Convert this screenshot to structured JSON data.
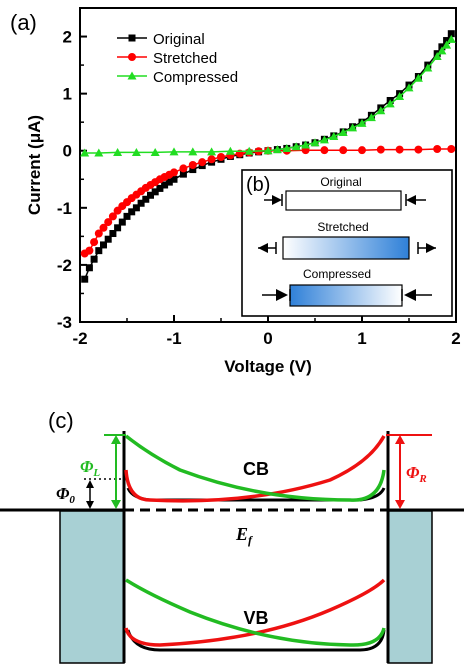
{
  "panel_a": {
    "label": "(a)",
    "chart_data": {
      "type": "line",
      "xlabel": "Voltage (V)",
      "ylabel": "Current (μA)",
      "xlim": [
        -2,
        2
      ],
      "ylim": [
        -3,
        2.5
      ],
      "x_ticks": [
        "-2",
        "-1",
        "0",
        "1",
        "2"
      ],
      "y_ticks": [
        "-3",
        "-2",
        "-1",
        "0",
        "1",
        "2"
      ],
      "legend_position": "top-center",
      "series": [
        {
          "name": "Original",
          "color": "#000000",
          "marker": "square",
          "x": [
            -1.95,
            -1.9,
            -1.85,
            -1.8,
            -1.75,
            -1.7,
            -1.65,
            -1.6,
            -1.55,
            -1.5,
            -1.45,
            -1.4,
            -1.35,
            -1.3,
            -1.25,
            -1.2,
            -1.15,
            -1.1,
            -1.05,
            -1.0,
            -0.9,
            -0.8,
            -0.7,
            -0.6,
            -0.5,
            -0.4,
            -0.3,
            -0.2,
            -0.1,
            0.0,
            0.1,
            0.2,
            0.3,
            0.4,
            0.5,
            0.6,
            0.7,
            0.8,
            0.9,
            1.0,
            1.1,
            1.2,
            1.3,
            1.4,
            1.5,
            1.6,
            1.7,
            1.8,
            1.85,
            1.9,
            1.95
          ],
          "y": [
            -2.25,
            -2.05,
            -1.9,
            -1.75,
            -1.65,
            -1.55,
            -1.45,
            -1.35,
            -1.25,
            -1.15,
            -1.07,
            -1.0,
            -0.92,
            -0.85,
            -0.78,
            -0.72,
            -0.66,
            -0.6,
            -0.55,
            -0.5,
            -0.41,
            -0.33,
            -0.26,
            -0.2,
            -0.15,
            -0.1,
            -0.07,
            -0.04,
            -0.02,
            0.0,
            0.02,
            0.04,
            0.07,
            0.1,
            0.14,
            0.2,
            0.26,
            0.33,
            0.42,
            0.5,
            0.62,
            0.75,
            0.88,
            1.0,
            1.15,
            1.3,
            1.5,
            1.7,
            1.82,
            1.93,
            2.05
          ]
        },
        {
          "name": "Stretched",
          "color": "#ff0000",
          "marker": "circle",
          "x": [
            -1.95,
            -1.9,
            -1.85,
            -1.8,
            -1.75,
            -1.7,
            -1.65,
            -1.6,
            -1.55,
            -1.5,
            -1.45,
            -1.4,
            -1.35,
            -1.3,
            -1.25,
            -1.2,
            -1.15,
            -1.1,
            -1.05,
            -1.0,
            -0.9,
            -0.8,
            -0.7,
            -0.6,
            -0.5,
            -0.4,
            -0.3,
            -0.2,
            -0.1,
            0.0,
            0.2,
            0.4,
            0.6,
            0.8,
            1.0,
            1.2,
            1.4,
            1.6,
            1.8,
            1.95
          ],
          "y": [
            -1.8,
            -1.75,
            -1.6,
            -1.45,
            -1.35,
            -1.25,
            -1.15,
            -1.05,
            -0.97,
            -0.9,
            -0.83,
            -0.77,
            -0.71,
            -0.65,
            -0.6,
            -0.55,
            -0.5,
            -0.46,
            -0.42,
            -0.38,
            -0.31,
            -0.25,
            -0.2,
            -0.15,
            -0.11,
            -0.08,
            -0.05,
            -0.03,
            -0.01,
            0.0,
            0.0,
            0.01,
            0.01,
            0.01,
            0.01,
            0.02,
            0.02,
            0.02,
            0.03,
            0.03
          ]
        },
        {
          "name": "Compressed",
          "color": "#22dd22",
          "marker": "triangle",
          "x": [
            -1.95,
            -1.8,
            -1.6,
            -1.4,
            -1.2,
            -1.0,
            -0.8,
            -0.6,
            -0.4,
            -0.2,
            0.0,
            0.1,
            0.2,
            0.3,
            0.4,
            0.5,
            0.6,
            0.7,
            0.8,
            0.9,
            1.0,
            1.1,
            1.2,
            1.3,
            1.4,
            1.5,
            1.6,
            1.7,
            1.8,
            1.85,
            1.9,
            1.95
          ],
          "y": [
            -0.04,
            -0.04,
            -0.03,
            -0.03,
            -0.03,
            -0.02,
            -0.02,
            -0.02,
            -0.01,
            -0.01,
            0.0,
            0.02,
            0.04,
            0.07,
            0.1,
            0.14,
            0.19,
            0.25,
            0.32,
            0.4,
            0.48,
            0.58,
            0.7,
            0.82,
            0.95,
            1.1,
            1.27,
            1.45,
            1.65,
            1.75,
            1.85,
            1.95
          ]
        }
      ]
    },
    "inset": {
      "label": "(b)",
      "items": [
        {
          "name": "Original"
        },
        {
          "name": "Stretched"
        },
        {
          "name": "Compressed"
        }
      ],
      "gradient_color": "#3388dd"
    }
  },
  "panel_c": {
    "label": "(c)",
    "cb_label": "CB",
    "vb_label": "VB",
    "ef_label": "E",
    "ef_sub": "f",
    "phi_l": "Φ",
    "phi_l_sub": "L",
    "phi_r": "Φ",
    "phi_r_sub": "R",
    "phi_0": "Φ",
    "phi_0_sub": "0",
    "colors": {
      "green": "#22bb22",
      "red": "#ee1111",
      "electrode": "#a8d0d4"
    }
  }
}
